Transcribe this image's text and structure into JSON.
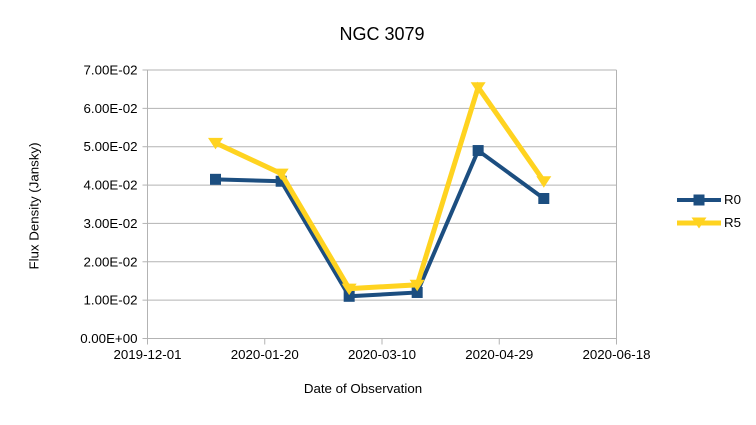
{
  "chart_data": {
    "type": "line",
    "title": "NGC 3079",
    "xlabel": "Date of Observation",
    "ylabel": "Flux Density (Jansky)",
    "x_tick_labels": [
      "2019-12-01",
      "2020-01-20",
      "2020-03-10",
      "2020-04-29",
      "2020-06-18"
    ],
    "x_tick_days": [
      0,
      50,
      100,
      150,
      200
    ],
    "y_tick_labels": [
      "0.00E+00",
      "1.00E-02",
      "2.00E-02",
      "3.00E-02",
      "4.00E-02",
      "5.00E-02",
      "6.00E-02",
      "7.00E-02"
    ],
    "ylim": [
      0,
      0.07
    ],
    "xlim_days": [
      0,
      200
    ],
    "x_axis_origin_date": "2019-12-01",
    "x_days": [
      29,
      57,
      86,
      115,
      141,
      169
    ],
    "x_dates_estimated": [
      "2019-12-30",
      "2020-01-27",
      "2020-02-25",
      "2020-03-25",
      "2020-04-20",
      "2020-05-18"
    ],
    "series": [
      {
        "name": "R0",
        "color": "#1C4E80",
        "marker": "square",
        "values": [
          0.0415,
          0.041,
          0.011,
          0.012,
          0.049,
          0.0365
        ]
      },
      {
        "name": "R5",
        "color": "#FFD320",
        "marker": "triangle-down",
        "values": [
          0.051,
          0.043,
          0.013,
          0.014,
          0.0655,
          0.041
        ]
      }
    ],
    "grid": "horizontal",
    "legend_position": "right"
  },
  "colors": {
    "background": "#FFFFFF",
    "grid": "#B3B3B3",
    "axis": "#B3B3B3",
    "text": "#000000"
  }
}
